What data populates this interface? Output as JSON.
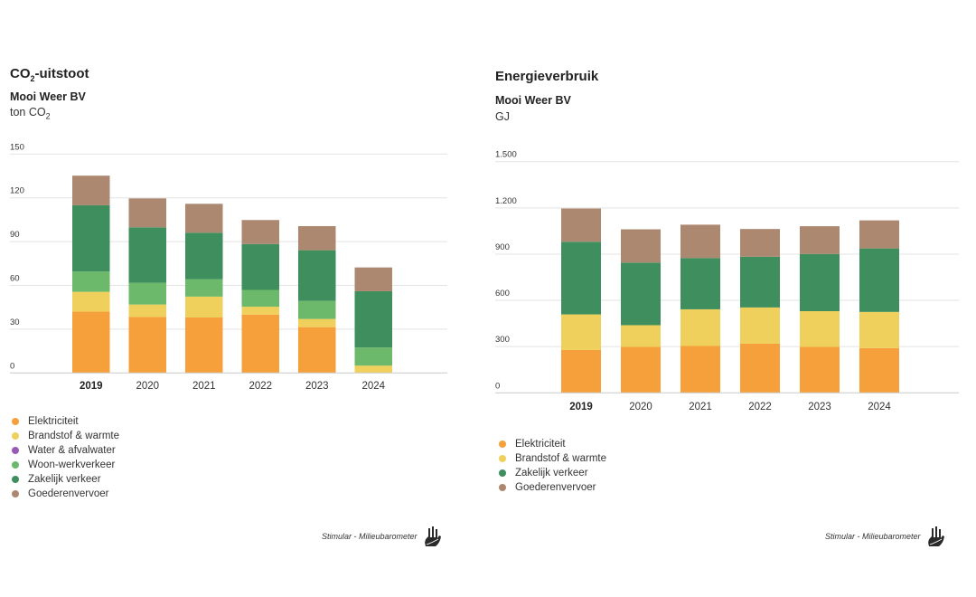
{
  "colors": {
    "Elektriciteit": "#f5a03a",
    "Brandstof & warmte": "#f0d05c",
    "Water & afvalwater": "#9b59b6",
    "Woon-werkverkeer": "#6cb96c",
    "Zakelijk verkeer": "#3e8e5e",
    "Goederenvervoer": "#ad8870"
  },
  "footer": {
    "text": "Stimular - Milieubarometer",
    "icon": "stimular-hand-logo-icon"
  },
  "chart_data": [
    {
      "type": "bar",
      "stacked": true,
      "title_main": "CO",
      "title_sub": "2",
      "title_rest": "-uitstoot",
      "subtitle": "Mooi Weer BV",
      "unit_main": "ton CO",
      "unit_sub": "2",
      "xlabel": "",
      "ylabel": "ton CO2",
      "ylim": [
        0,
        150
      ],
      "yticks": [
        0,
        30,
        60,
        90,
        120,
        150
      ],
      "ytick_labels": [
        "0",
        "30",
        "60",
        "90",
        "120",
        "150"
      ],
      "grid": true,
      "highlight_category": "2019",
      "categories": [
        "2019",
        "2020",
        "2021",
        "2022",
        "2023",
        "2024"
      ],
      "series": [
        {
          "name": "Elektriciteit",
          "values": [
            42,
            38.4,
            38,
            40,
            31.4,
            0
          ]
        },
        {
          "name": "Brandstof & warmte",
          "values": [
            13.6,
            8.5,
            14.3,
            5.4,
            5.6,
            5
          ]
        },
        {
          "name": "Water & afvalwater",
          "values": [
            0,
            0,
            0,
            0,
            0,
            0
          ]
        },
        {
          "name": "Woon-werkverkeer",
          "values": [
            13.9,
            14.9,
            12,
            11.5,
            12.4,
            12.4
          ]
        },
        {
          "name": "Zakelijk verkeer",
          "values": [
            45.4,
            38,
            31.8,
            31.4,
            34.7,
            38.6
          ]
        },
        {
          "name": "Goederenvervoer",
          "values": [
            20.3,
            19.8,
            19.8,
            16.5,
            16.5,
            16.3
          ]
        }
      ],
      "legend": [
        "Elektriciteit",
        "Brandstof & warmte",
        "Water & afvalwater",
        "Woon-werkverkeer",
        "Zakelijk verkeer",
        "Goederenvervoer"
      ],
      "legend_position": "bottom-left"
    },
    {
      "type": "bar",
      "stacked": true,
      "title_main": "Energieverbruik",
      "title_sub": "",
      "title_rest": "",
      "subtitle": "Mooi Weer BV",
      "unit_main": "GJ",
      "unit_sub": "",
      "xlabel": "",
      "ylabel": "GJ",
      "ylim": [
        0,
        1500
      ],
      "yticks": [
        0,
        300,
        600,
        900,
        1200,
        1500
      ],
      "ytick_labels": [
        "0",
        "300",
        "600",
        "900",
        "1.200",
        "1.500"
      ],
      "grid": true,
      "highlight_category": "2019",
      "categories": [
        "2019",
        "2020",
        "2021",
        "2022",
        "2023",
        "2024"
      ],
      "series": [
        {
          "name": "Elektriciteit",
          "values": [
            278,
            298,
            304,
            319,
            298,
            290
          ]
        },
        {
          "name": "Brandstof & warmte",
          "values": [
            231,
            141,
            238,
            235,
            232,
            235
          ]
        },
        {
          "name": "Zakelijk verkeer",
          "values": [
            471,
            406,
            333,
            329,
            371,
            412
          ]
        },
        {
          "name": "Goederenvervoer",
          "values": [
            216,
            216,
            216,
            180,
            180,
            182
          ]
        }
      ],
      "legend": [
        "Elektriciteit",
        "Brandstof & warmte",
        "Zakelijk verkeer",
        "Goederenvervoer"
      ],
      "legend_position": "bottom-left"
    }
  ]
}
